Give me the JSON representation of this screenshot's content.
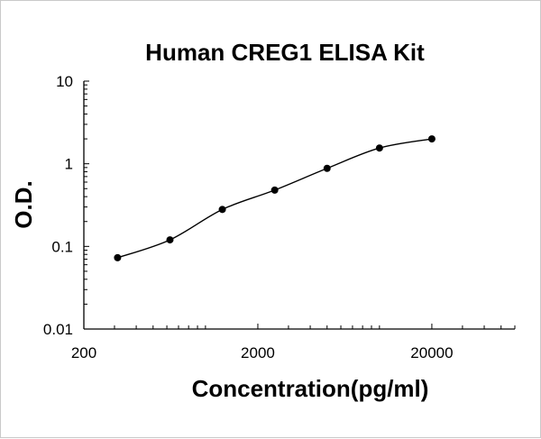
{
  "chart_data": {
    "type": "scatter",
    "title": "Human CREG1 ELISA Kit",
    "xlabel": "Concentration(pg/ml)",
    "ylabel": "O.D.",
    "xscale": "log",
    "yscale": "log",
    "xlim": [
      200,
      60000
    ],
    "ylim": [
      0.01,
      10
    ],
    "xticks": [
      {
        "value": 200,
        "label": "200"
      },
      {
        "value": 2000,
        "label": "2000"
      },
      {
        "value": 20000,
        "label": "20000"
      }
    ],
    "yticks": [
      {
        "value": 10,
        "label": "10"
      },
      {
        "value": 1,
        "label": "1"
      },
      {
        "value": 0.1,
        "label": "0.1"
      },
      {
        "value": 0.01,
        "label": "0.01"
      }
    ],
    "grid": false,
    "legend": "none",
    "trendline": "smooth",
    "series": [
      {
        "points": [
          {
            "x": 312.5,
            "y": 0.073
          },
          {
            "x": 625,
            "y": 0.12
          },
          {
            "x": 1250,
            "y": 0.28
          },
          {
            "x": 2500,
            "y": 0.48
          },
          {
            "x": 5000,
            "y": 0.88
          },
          {
            "x": 10000,
            "y": 1.55
          },
          {
            "x": 20000,
            "y": 2.0
          }
        ]
      }
    ]
  }
}
